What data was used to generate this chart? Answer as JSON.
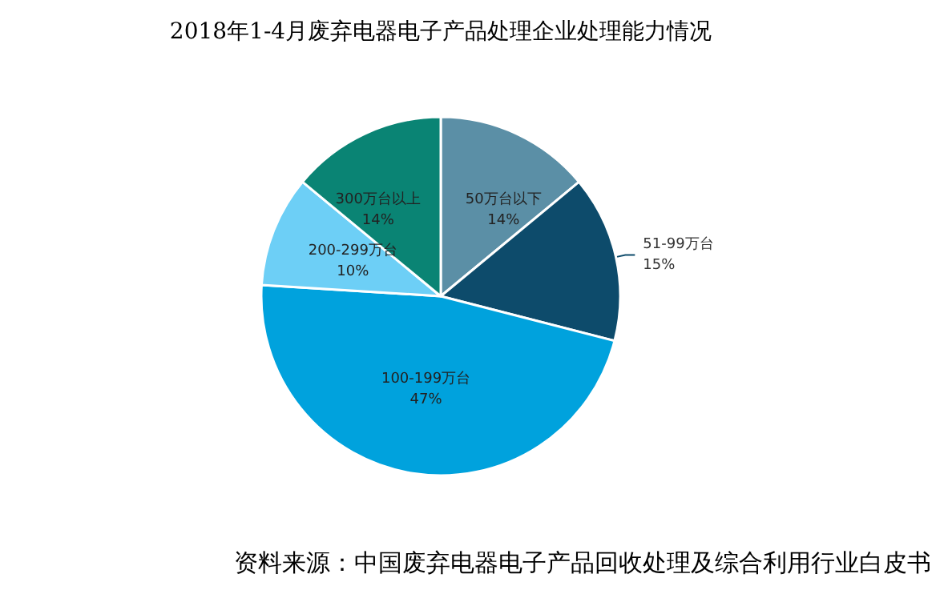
{
  "chart_data": {
    "type": "pie",
    "title": "2018年1-4月废弃电器电子产品处理企业处理能力情况",
    "categories": [
      "50万台以下",
      "51-99万台",
      "100-199万台",
      "200-299万台",
      "300万台以上"
    ],
    "values": [
      14,
      15,
      47,
      10,
      14
    ],
    "colors": [
      "#5b8fa6",
      "#0d4b6b",
      "#00a2dd",
      "#6dcff6",
      "#0a8474"
    ],
    "value_labels": [
      "14%",
      "15%",
      "47%",
      "10%",
      "14%"
    ],
    "legend": false,
    "annotations": [
      "资料来源：中国废弃电器电子产品回收处理及综合利用行业白皮书"
    ]
  }
}
